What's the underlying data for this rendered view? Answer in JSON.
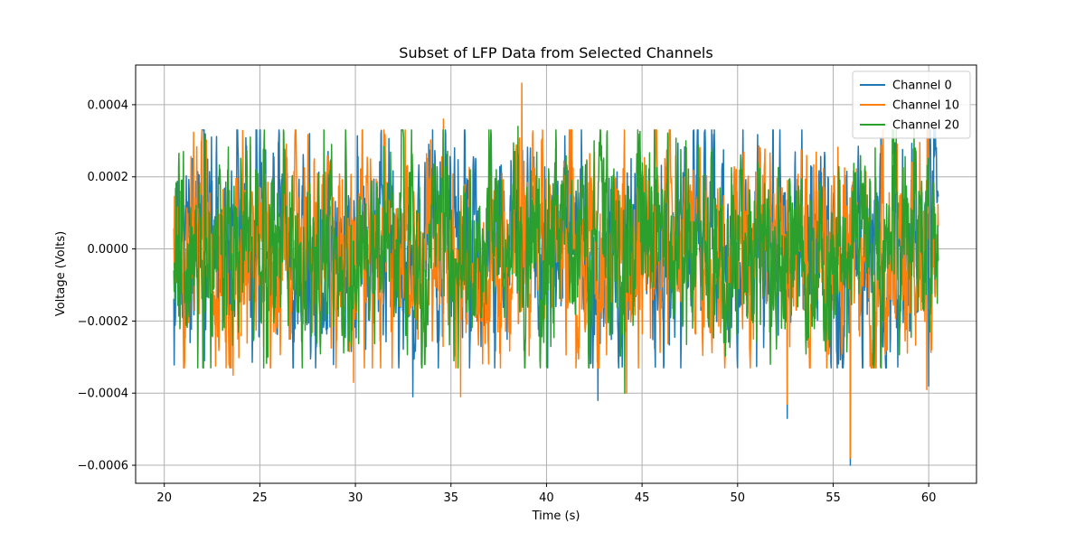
{
  "chart_data": {
    "type": "line",
    "title": "Subset of LFP Data from Selected Channels",
    "xlabel": "Time (s)",
    "ylabel": "Voltage (Volts)",
    "xlim": [
      18.5,
      62.5
    ],
    "ylim": [
      -0.00065,
      0.00051
    ],
    "x_ticks": [
      20,
      25,
      30,
      35,
      40,
      45,
      50,
      55,
      60
    ],
    "x_tick_labels": [
      "20",
      "25",
      "30",
      "35",
      "40",
      "45",
      "50",
      "55",
      "60"
    ],
    "y_ticks": [
      -0.0006,
      -0.0004,
      -0.0002,
      0.0,
      0.0002,
      0.0004
    ],
    "y_tick_labels": [
      "−0.0006",
      "−0.0004",
      "−0.0002",
      "0.0000",
      "0.0002",
      "0.0004"
    ],
    "grid": true,
    "legend_position": "top-right",
    "x_range": [
      20.5,
      60.5
    ],
    "series": [
      {
        "name": "Channel 0",
        "color": "#1f77b4",
        "seed": 11,
        "sigma": 0.0001,
        "extremes": [
          [
            22.1,
            -0.00031
          ],
          [
            27.6,
            0.00032
          ],
          [
            33.0,
            -0.00041
          ],
          [
            42.7,
            -0.00042
          ],
          [
            52.6,
            -0.00047
          ],
          [
            55.9,
            -0.0006
          ],
          [
            57.5,
            0.00031
          ],
          [
            60.0,
            -0.00038
          ]
        ]
      },
      {
        "name": "Channel 10",
        "color": "#ff7f0e",
        "seed": 29,
        "sigma": 0.0001,
        "extremes": [
          [
            23.6,
            -0.00035
          ],
          [
            29.9,
            -0.00037
          ],
          [
            34.6,
            0.00036
          ],
          [
            35.5,
            -0.00041
          ],
          [
            38.7,
            0.00046
          ],
          [
            44.2,
            -0.0004
          ],
          [
            52.6,
            -0.00043
          ],
          [
            55.9,
            0.00038
          ],
          [
            55.9,
            -0.00058
          ],
          [
            59.9,
            -0.00039
          ]
        ]
      },
      {
        "name": "Channel 20",
        "color": "#2ca02c",
        "seed": 47,
        "sigma": 9.5e-05,
        "extremes": [
          [
            21.0,
            0.00027
          ],
          [
            25.2,
            -0.00033
          ],
          [
            38.5,
            0.00034
          ],
          [
            42.5,
            0.0003
          ],
          [
            44.1,
            -0.0004
          ],
          [
            47.3,
            0.0003
          ],
          [
            57.2,
            0.00028
          ],
          [
            58.3,
            0.00033
          ]
        ]
      }
    ]
  }
}
